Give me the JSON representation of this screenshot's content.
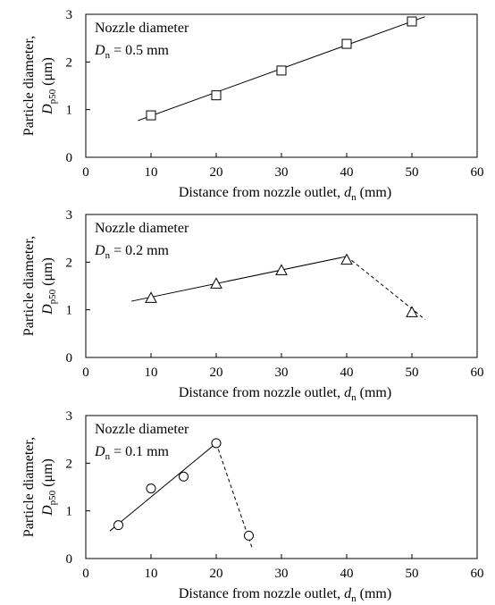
{
  "chart_data": [
    {
      "type": "scatter",
      "annotation_title": "Nozzle diameter",
      "annotation_var": "D",
      "annotation_sub": "n",
      "annotation_value": "= 0.5 mm",
      "xlabel": "Distance from nozzle outlet, ",
      "xlabel_var": "d",
      "xlabel_sub": "n",
      "xlabel_unit": " (mm)",
      "ylabel_line1": "Particle diameter,",
      "ylabel_var": "D",
      "ylabel_sub": "p50",
      "ylabel_unit": " (μm)",
      "xlim": [
        0,
        60
      ],
      "ylim": [
        0,
        3
      ],
      "xticks": [
        "0",
        "10",
        "20",
        "30",
        "40",
        "50",
        "60"
      ],
      "yticks": [
        "0",
        "1",
        "2",
        "3"
      ],
      "marker": "square",
      "points": [
        {
          "x": 10,
          "y": 0.88
        },
        {
          "x": 20,
          "y": 1.3
        },
        {
          "x": 30,
          "y": 1.82
        },
        {
          "x": 40,
          "y": 2.38
        },
        {
          "x": 50,
          "y": 2.85
        }
      ],
      "fit_lines": [
        {
          "style": "solid",
          "x": [
            8,
            52
          ],
          "y": [
            0.77,
            2.95
          ]
        }
      ]
    },
    {
      "type": "scatter",
      "annotation_title": "Nozzle diameter",
      "annotation_var": "D",
      "annotation_sub": "n",
      "annotation_value": "= 0.2 mm",
      "xlabel": "Distance from nozzle outlet, ",
      "xlabel_var": "d",
      "xlabel_sub": "n",
      "xlabel_unit": " (mm)",
      "ylabel_line1": "Particle diameter,",
      "ylabel_var": "D",
      "ylabel_sub": "p50",
      "ylabel_unit": " (μm)",
      "xlim": [
        0,
        60
      ],
      "ylim": [
        0,
        3
      ],
      "xticks": [
        "0",
        "10",
        "20",
        "30",
        "40",
        "50",
        "60"
      ],
      "yticks": [
        "0",
        "1",
        "2",
        "3"
      ],
      "marker": "triangle",
      "points": [
        {
          "x": 10,
          "y": 1.25
        },
        {
          "x": 20,
          "y": 1.55
        },
        {
          "x": 30,
          "y": 1.83
        },
        {
          "x": 40,
          "y": 2.05
        },
        {
          "x": 50,
          "y": 0.95
        }
      ],
      "fit_lines": [
        {
          "style": "solid",
          "x": [
            7,
            40
          ],
          "y": [
            1.18,
            2.12
          ]
        },
        {
          "style": "dashed",
          "x": [
            40,
            52
          ],
          "y": [
            2.12,
            0.8
          ]
        }
      ]
    },
    {
      "type": "scatter",
      "annotation_title": "Nozzle diameter",
      "annotation_var": "D",
      "annotation_sub": "n",
      "annotation_value": "= 0.1 mm",
      "xlabel": "Distance from nozzle outlet, ",
      "xlabel_var": "d",
      "xlabel_sub": "n",
      "xlabel_unit": " (mm)",
      "ylabel_line1": "Particle diameter,",
      "ylabel_var": "D",
      "ylabel_sub": "p50",
      "ylabel_unit": " (μm)",
      "xlim": [
        0,
        60
      ],
      "ylim": [
        0,
        3
      ],
      "xticks": [
        "0",
        "10",
        "20",
        "30",
        "40",
        "50",
        "60"
      ],
      "yticks": [
        "0",
        "1",
        "2",
        "3"
      ],
      "marker": "circle",
      "points": [
        {
          "x": 5,
          "y": 0.7
        },
        {
          "x": 10,
          "y": 1.47
        },
        {
          "x": 15,
          "y": 1.72
        },
        {
          "x": 20,
          "y": 2.42
        },
        {
          "x": 25,
          "y": 0.48
        }
      ],
      "fit_lines": [
        {
          "style": "solid",
          "x": [
            3.7,
            20
          ],
          "y": [
            0.58,
            2.42
          ]
        },
        {
          "style": "dashed",
          "x": [
            20,
            25.5
          ],
          "y": [
            2.42,
            0.22
          ]
        }
      ]
    }
  ]
}
